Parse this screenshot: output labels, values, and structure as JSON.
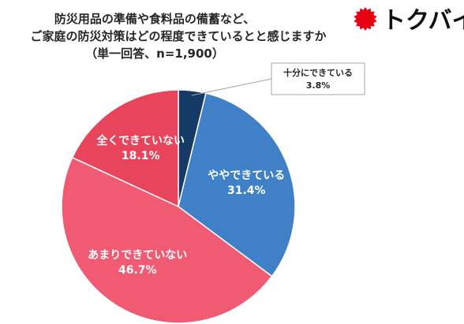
{
  "title_lines": [
    "防災用品の準備や食料品の備蓄など、",
    "ご家庭の防災対策はどの程度できているとと感じますか",
    "（単一回答、n=1,900）"
  ],
  "brand": {
    "name": "トクバイ",
    "icon": "red-sunburst-icon",
    "color": "#e60012"
  },
  "chart_data": {
    "type": "pie",
    "title": "防災用品の準備や食料品の備蓄など、ご家庭の防災対策はどの程度できていると感じますか（単一回答、n=1,900）",
    "slices": [
      {
        "label": "十分にできている",
        "value": 3.8,
        "display": "3.8%",
        "color": "#153a66"
      },
      {
        "label": "ややできている",
        "value": 31.4,
        "display": "31.4%",
        "color": "#4080c6"
      },
      {
        "label": "あまりできていない",
        "value": 46.7,
        "display": "46.7%",
        "color": "#f05a73"
      },
      {
        "label": "全くできていない",
        "value": 18.1,
        "display": "18.1%",
        "color": "#e8455d"
      }
    ],
    "start": "12 o'clock",
    "direction": "clockwise",
    "callout": "十分にできている"
  }
}
